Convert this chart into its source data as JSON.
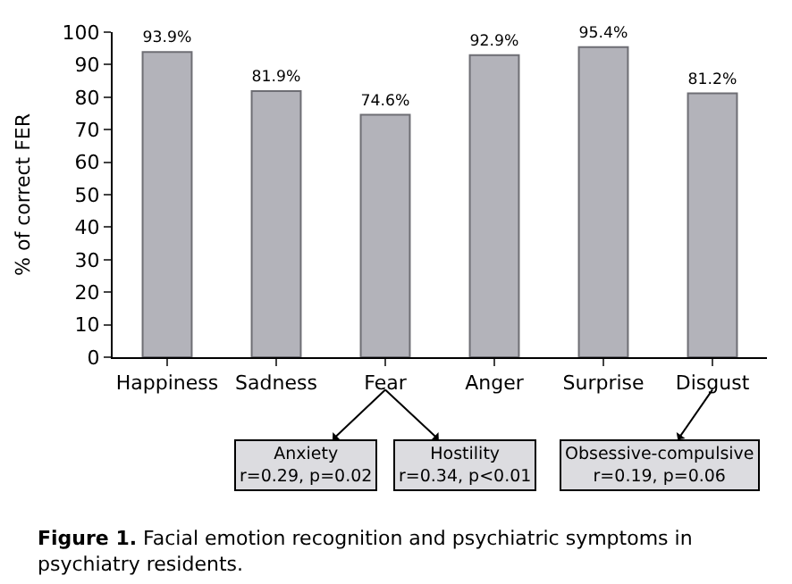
{
  "chart_data": {
    "type": "bar",
    "categories": [
      "Happiness",
      "Sadness",
      "Fear",
      "Anger",
      "Surprise",
      "Disgust"
    ],
    "values": [
      93.9,
      81.9,
      74.6,
      92.9,
      95.4,
      81.2
    ],
    "value_labels": [
      "93.9%",
      "81.9%",
      "74.6%",
      "92.9%",
      "95.4%",
      "81.2%"
    ],
    "color": "#b3b3ba",
    "ylabel": "% of correct FER",
    "ylim": [
      0,
      100
    ],
    "yticks": [
      0,
      10,
      20,
      30,
      40,
      50,
      60,
      70,
      80,
      90,
      100
    ],
    "annotations": [
      "Anxiety\nr=0.29, p=0.02",
      "Hostility\nr=0.34, p<0.01",
      "Obsessive-compulsive\nr=0.19, p=0.06",
      "Figure 1. Facial emotion recognition and psychiatric symptoms in psychiatry residents."
    ]
  }
}
